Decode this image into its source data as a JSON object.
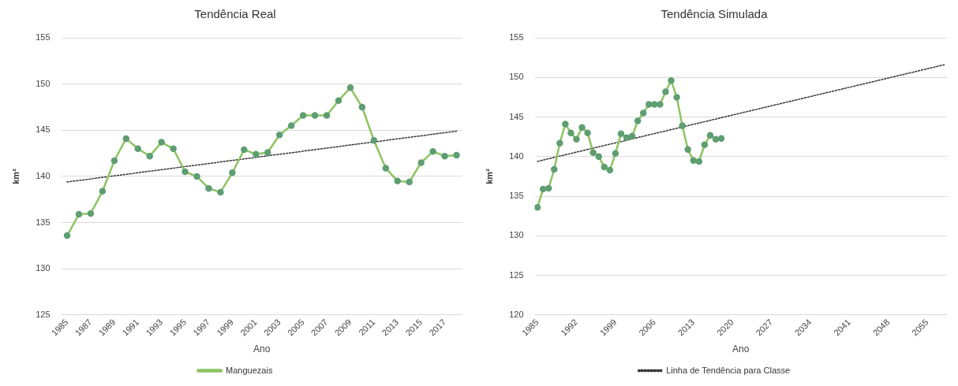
{
  "chart_data": [
    {
      "type": "line",
      "title": "Tendência Real",
      "xlabel": "Ano",
      "ylabel": "km²",
      "xlim": [
        1984.5,
        2018.5
      ],
      "xticks": [
        1985,
        1987,
        1989,
        1991,
        1993,
        1995,
        1997,
        1999,
        2001,
        2003,
        2005,
        2007,
        2009,
        2011,
        2013,
        2015,
        2017
      ],
      "ylim": [
        125,
        155
      ],
      "yticks": [
        125,
        130,
        135,
        140,
        145,
        150,
        155
      ],
      "grid": "y",
      "legend": "bottom",
      "marker": "circle",
      "series": [
        {
          "name": "Manguezais",
          "color": "#8cc461",
          "x": [
            1985,
            1986,
            1987,
            1988,
            1989,
            1990,
            1991,
            1992,
            1993,
            1994,
            1995,
            1996,
            1997,
            1998,
            1999,
            2000,
            2001,
            2002,
            2003,
            2004,
            2005,
            2006,
            2007,
            2008,
            2009,
            2010,
            2011,
            2012,
            2013,
            2014,
            2015,
            2016,
            2017,
            2018
          ],
          "values": [
            133.6,
            135.9,
            136.0,
            138.4,
            141.7,
            144.1,
            143.0,
            142.2,
            143.7,
            143.0,
            140.5,
            140.0,
            138.7,
            138.3,
            140.4,
            142.9,
            142.4,
            142.6,
            144.5,
            145.5,
            146.6,
            146.6,
            146.6,
            148.2,
            149.6,
            147.5,
            143.9,
            140.9,
            139.5,
            139.4,
            141.5,
            142.7,
            142.2,
            142.3
          ]
        },
        {
          "type": "line",
          "color": "#333333",
          "line_style": "dotted",
          "marker": "none",
          "x": [
            1985,
            2018
          ],
          "values": [
            139.4,
            144.9
          ]
        }
      ]
    },
    {
      "type": "line",
      "title": "Tendência Simulada",
      "xlabel": "Ano",
      "ylabel": "km²",
      "xlim": [
        1984.5,
        2058.5
      ],
      "xticks": [
        1985,
        1992,
        1999,
        2006,
        2013,
        2020,
        2027,
        2034,
        2041,
        2048,
        2055
      ],
      "ylim": [
        120,
        155
      ],
      "yticks": [
        120,
        125,
        130,
        135,
        140,
        145,
        150,
        155
      ],
      "grid": "y",
      "legend": "bottom",
      "marker": "circle",
      "series": [
        {
          "color": "#8cc461",
          "x": [
            1985,
            1986,
            1987,
            1988,
            1989,
            1990,
            1991,
            1992,
            1993,
            1994,
            1995,
            1996,
            1997,
            1998,
            1999,
            2000,
            2001,
            2002,
            2003,
            2004,
            2005,
            2006,
            2007,
            2008,
            2009,
            2010,
            2011,
            2012,
            2013,
            2014,
            2015,
            2016,
            2017,
            2018
          ],
          "values": [
            133.6,
            135.9,
            136.0,
            138.4,
            141.7,
            144.1,
            143.0,
            142.2,
            143.7,
            143.0,
            140.5,
            140.0,
            138.7,
            138.3,
            140.4,
            142.9,
            142.4,
            142.6,
            144.5,
            145.5,
            146.6,
            146.6,
            146.6,
            148.2,
            149.6,
            147.5,
            143.9,
            140.9,
            139.5,
            139.4,
            141.5,
            142.7,
            142.2,
            142.3
          ]
        },
        {
          "name": "Linha de Tendência para Classe",
          "type": "line",
          "color": "#333333",
          "line_style": "dotted",
          "marker": "none",
          "x": [
            1985,
            2058
          ],
          "values": [
            139.4,
            151.6
          ]
        }
      ]
    }
  ]
}
